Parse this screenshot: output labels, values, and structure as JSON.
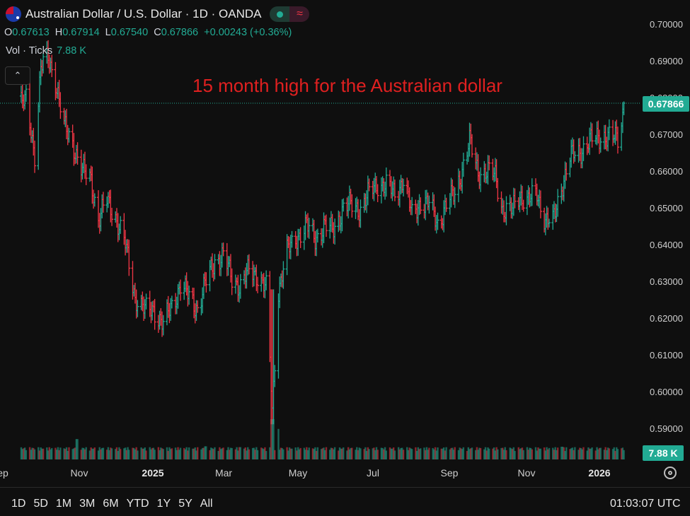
{
  "header": {
    "symbol_title": "Australian Dollar / U.S. Dollar · 1D · OANDA",
    "wave_icon": "≈"
  },
  "ohlc": {
    "o_label": "O",
    "o": "0.67613",
    "h_label": "H",
    "h": "0.67914",
    "l_label": "L",
    "l": "0.67540",
    "c_label": "C",
    "c": "0.67866",
    "change": "+0.00243 (+0.36%)"
  },
  "volume": {
    "label": "Vol · Ticks",
    "value": "7.88 K"
  },
  "collapse_icon": "⌃",
  "annotation": "15 month high for the Australian dollar",
  "colors": {
    "up": "#22ab94",
    "down": "#f23645",
    "annotation": "#e02020",
    "background": "#0f0f0f"
  },
  "time_ranges": [
    "1D",
    "5D",
    "1M",
    "3M",
    "6M",
    "YTD",
    "1Y",
    "5Y",
    "All"
  ],
  "clock": "01:03:07 UTC",
  "chart_data": {
    "type": "ohlc",
    "title": "Australian Dollar / U.S. Dollar · 1D · OANDA",
    "y_ticks": [
      "0.70000",
      "0.69000",
      "0.68000",
      "0.67000",
      "0.66000",
      "0.65000",
      "0.64000",
      "0.63000",
      "0.62000",
      "0.61000",
      "0.60000",
      "0.59000"
    ],
    "x_ticks": [
      {
        "label": "ep",
        "bold": false
      },
      {
        "label": "Nov",
        "bold": false
      },
      {
        "label": "2025",
        "bold": true
      },
      {
        "label": "Mar",
        "bold": false
      },
      {
        "label": "May",
        "bold": false
      },
      {
        "label": "Jul",
        "bold": false
      },
      {
        "label": "Sep",
        "bold": false
      },
      {
        "label": "Nov",
        "bold": false
      },
      {
        "label": "2026",
        "bold": true
      }
    ],
    "last_price_label": "0.67866",
    "last_price": 0.67866,
    "volume_label": "7.88 K",
    "ylim": [
      0.5855,
      0.7043
    ],
    "price_path": [
      [
        "2024-09-20",
        0.68
      ],
      [
        "2024-09-27",
        0.665
      ],
      [
        "2024-10-02",
        0.688
      ],
      [
        "2024-10-08",
        0.691
      ],
      [
        "2024-10-14",
        0.685
      ],
      [
        "2024-10-21",
        0.672
      ],
      [
        "2024-10-28",
        0.668
      ],
      [
        "2024-11-05",
        0.66
      ],
      [
        "2024-11-12",
        0.658
      ],
      [
        "2024-11-18",
        0.647
      ],
      [
        "2024-11-25",
        0.652
      ],
      [
        "2024-12-02",
        0.648
      ],
      [
        "2024-12-10",
        0.64
      ],
      [
        "2024-12-18",
        0.626
      ],
      [
        "2024-12-26",
        0.622
      ],
      [
        "2025-01-02",
        0.623
      ],
      [
        "2025-01-10",
        0.618
      ],
      [
        "2025-01-17",
        0.624
      ],
      [
        "2025-01-24",
        0.629
      ],
      [
        "2025-01-31",
        0.626
      ],
      [
        "2025-02-07",
        0.623
      ],
      [
        "2025-02-14",
        0.63
      ],
      [
        "2025-02-21",
        0.636
      ],
      [
        "2025-02-28",
        0.637
      ],
      [
        "2025-03-07",
        0.631
      ],
      [
        "2025-03-14",
        0.629
      ],
      [
        "2025-03-21",
        0.633
      ],
      [
        "2025-03-28",
        0.632
      ],
      [
        "2025-04-04",
        0.628
      ],
      [
        "2025-04-09",
        0.595
      ],
      [
        "2025-04-14",
        0.628
      ],
      [
        "2025-04-21",
        0.638
      ],
      [
        "2025-04-28",
        0.642
      ],
      [
        "2025-05-07",
        0.645
      ],
      [
        "2025-05-14",
        0.642
      ],
      [
        "2025-05-21",
        0.645
      ],
      [
        "2025-05-28",
        0.644
      ],
      [
        "2025-06-06",
        0.65
      ],
      [
        "2025-06-13",
        0.651
      ],
      [
        "2025-06-20",
        0.65
      ],
      [
        "2025-06-27",
        0.654
      ],
      [
        "2025-07-04",
        0.657
      ],
      [
        "2025-07-11",
        0.656
      ],
      [
        "2025-07-18",
        0.654
      ],
      [
        "2025-07-25",
        0.658
      ],
      [
        "2025-08-01",
        0.648
      ],
      [
        "2025-08-08",
        0.652
      ],
      [
        "2025-08-15",
        0.651
      ],
      [
        "2025-08-22",
        0.646
      ],
      [
        "2025-08-29",
        0.651
      ],
      [
        "2025-09-05",
        0.654
      ],
      [
        "2025-09-12",
        0.662
      ],
      [
        "2025-09-17",
        0.668
      ],
      [
        "2025-09-24",
        0.66
      ],
      [
        "2025-10-01",
        0.66
      ],
      [
        "2025-10-08",
        0.659
      ],
      [
        "2025-10-14",
        0.65
      ],
      [
        "2025-10-21",
        0.649
      ],
      [
        "2025-10-28",
        0.654
      ],
      [
        "2025-11-04",
        0.652
      ],
      [
        "2025-11-11",
        0.654
      ],
      [
        "2025-11-18",
        0.647
      ],
      [
        "2025-11-24",
        0.646
      ],
      [
        "2025-12-01",
        0.656
      ],
      [
        "2025-12-08",
        0.664
      ],
      [
        "2025-12-15",
        0.665
      ],
      [
        "2025-12-22",
        0.668
      ],
      [
        "2025-12-29",
        0.669
      ],
      [
        "2026-01-05",
        0.67
      ],
      [
        "2026-01-12",
        0.669
      ],
      [
        "2026-01-17",
        0.669
      ],
      [
        "2026-01-21",
        0.67866
      ]
    ],
    "volume_spikes": [
      [
        "2024-11-01",
        4.8
      ],
      [
        "2025-02-14",
        3.1
      ],
      [
        "2025-03-14",
        2.9
      ],
      [
        "2025-04-09",
        9.5
      ],
      [
        "2025-04-13",
        7.2
      ],
      [
        "2025-12-01",
        3.0
      ]
    ],
    "volume_base": 2.0,
    "volume_ylim": [
      0,
      10
    ]
  }
}
